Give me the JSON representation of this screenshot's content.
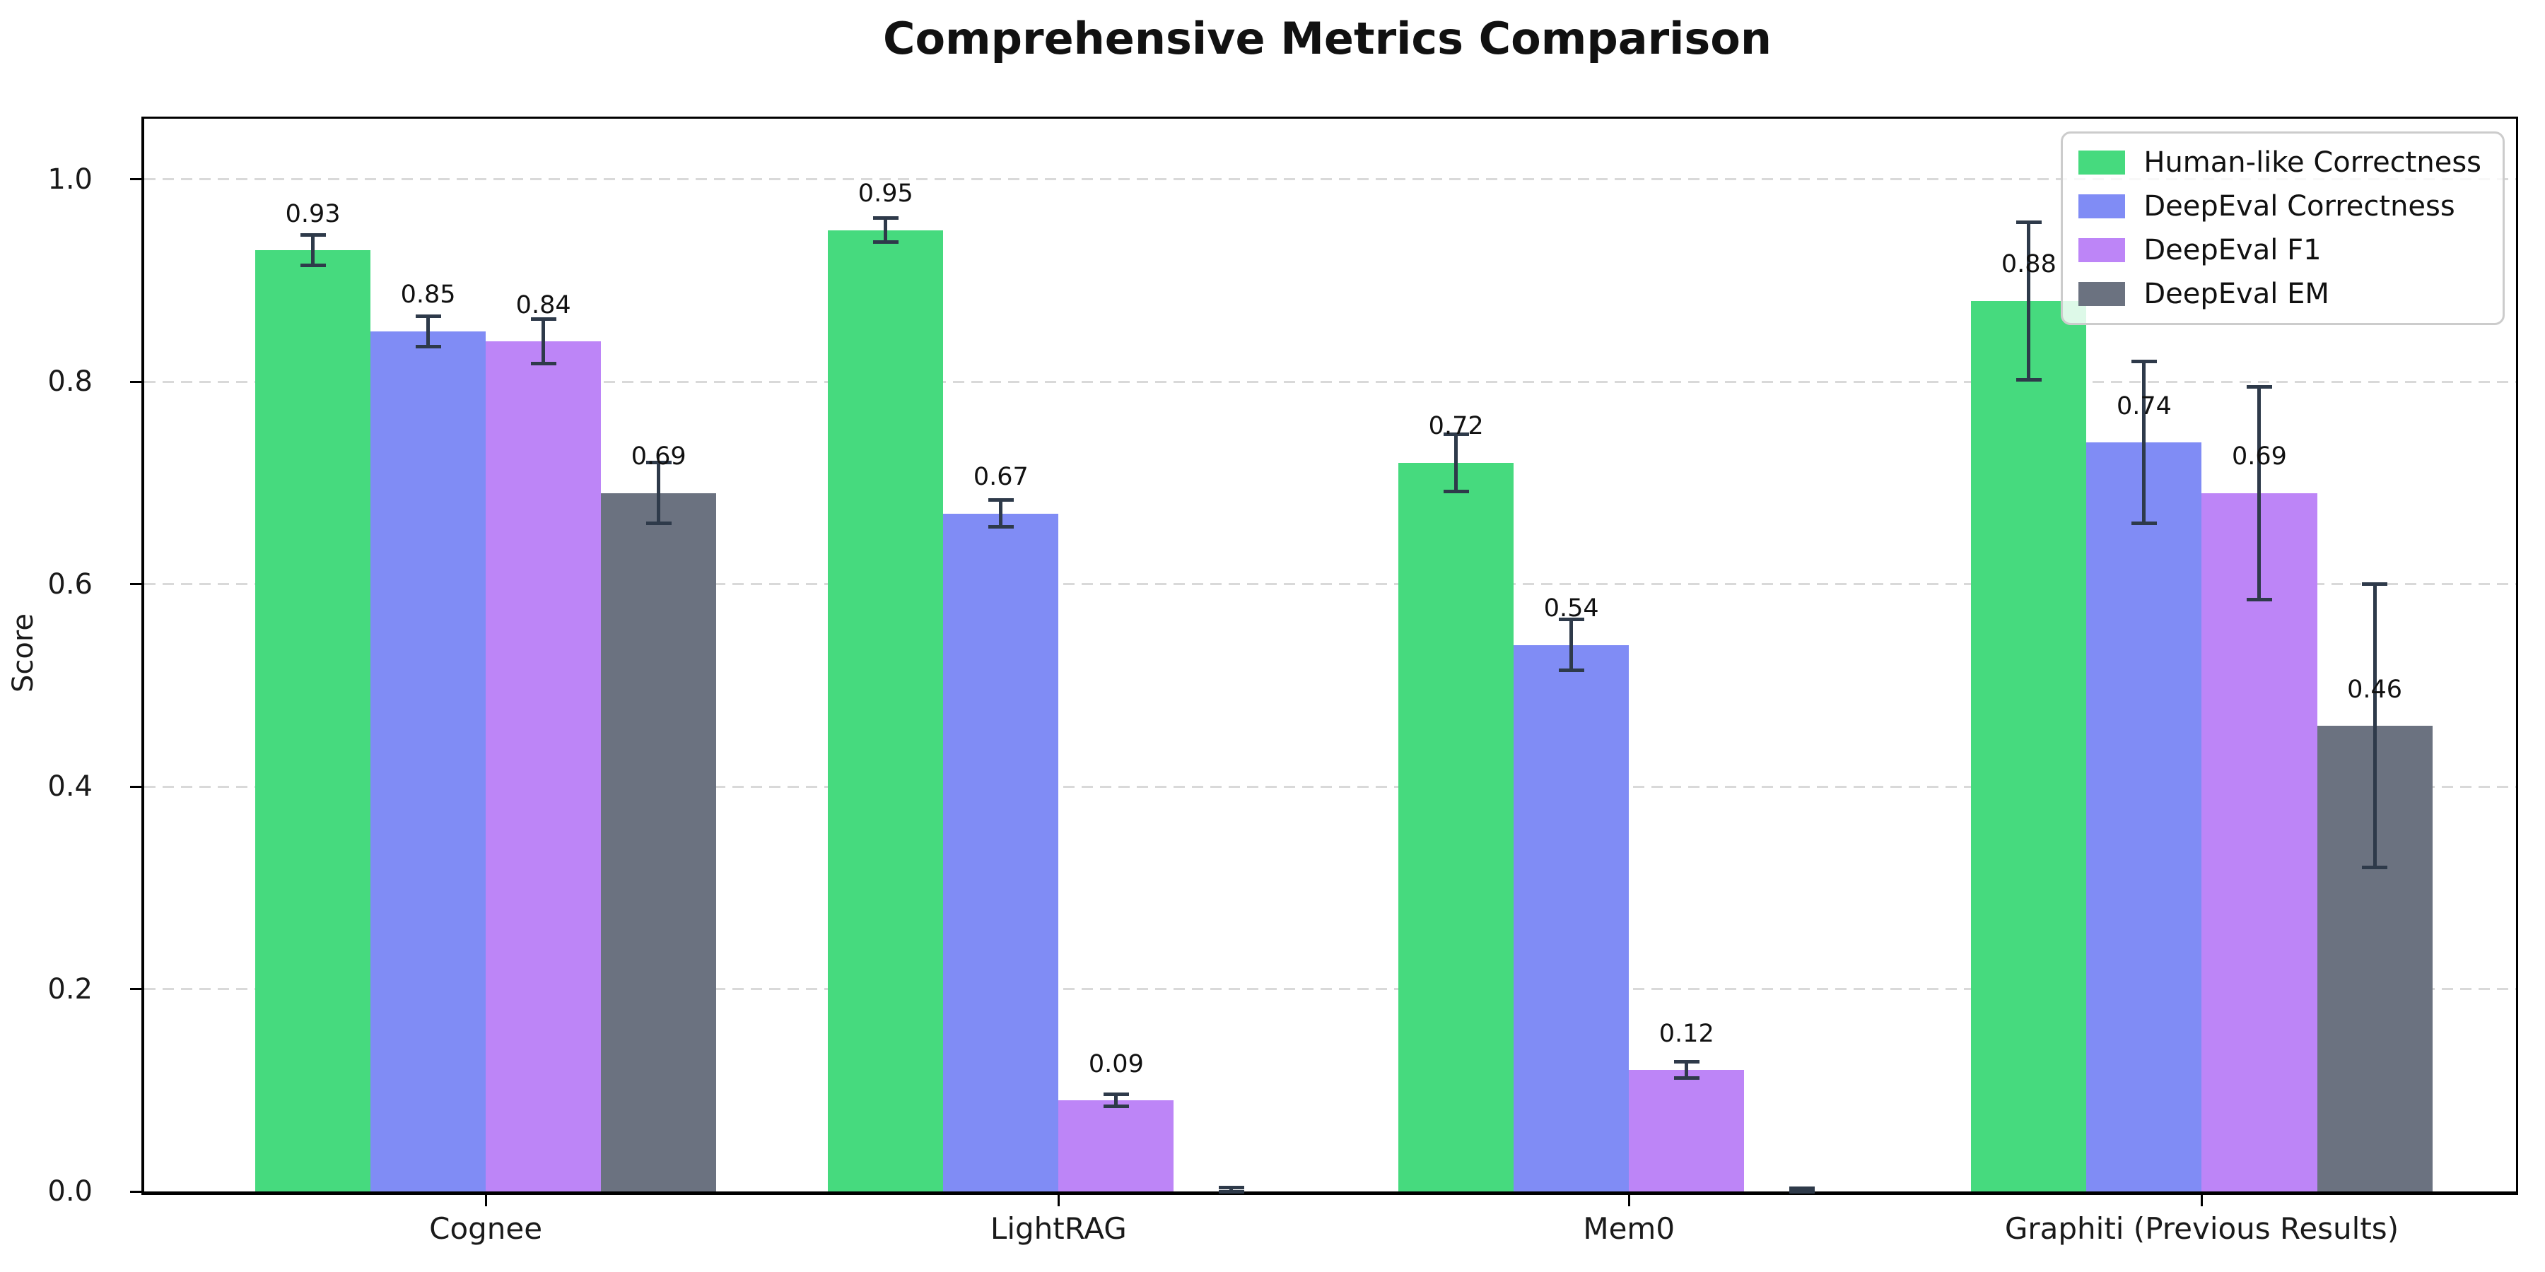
{
  "title": "Comprehensive Metrics Comparison",
  "axes": {
    "ylabel": "Score",
    "yticks": [
      "0.0",
      "0.2",
      "0.4",
      "0.6",
      "0.8",
      "1.0"
    ],
    "categories": [
      "Cognee",
      "LightRAG",
      "Mem0",
      "Graphiti (Previous Results)"
    ]
  },
  "chart_data": {
    "type": "bar",
    "title": "Comprehensive Metrics Comparison",
    "xlabel": "",
    "ylabel": "Score",
    "ylim": [
      0,
      1.06
    ],
    "grid": "horizontal dashed",
    "legend_position": "upper right",
    "error_bar_color": "#2e3a4a",
    "grid_color": "#d9d9d9",
    "categories": [
      "Cognee",
      "LightRAG",
      "Mem0",
      "Graphiti (Previous Results)"
    ],
    "yticks": [
      0.0,
      0.2,
      0.4,
      0.6,
      0.8,
      1.0
    ],
    "series": [
      {
        "name": "Human-like Correctness",
        "color": "#46da7e",
        "values": [
          0.93,
          0.95,
          0.72,
          0.88
        ],
        "errors": [
          0.015,
          0.012,
          0.028,
          0.078
        ],
        "labels": [
          "0.93",
          "0.95",
          "0.72",
          "0.88"
        ]
      },
      {
        "name": "DeepEval Correctness",
        "color": "#808cf5",
        "values": [
          0.85,
          0.67,
          0.54,
          0.74
        ],
        "errors": [
          0.015,
          0.013,
          0.025,
          0.08
        ],
        "labels": [
          "0.85",
          "0.67",
          "0.54",
          "0.74"
        ]
      },
      {
        "name": "DeepEval F1",
        "color": "#bd85f7",
        "values": [
          0.84,
          0.09,
          0.12,
          0.69
        ],
        "errors": [
          0.022,
          0.006,
          0.008,
          0.105
        ],
        "labels": [
          "0.84",
          "0.09",
          "0.12",
          "0.69"
        ]
      },
      {
        "name": "DeepEval EM",
        "color": "#6b7280",
        "values": [
          0.69,
          0.0,
          0.0,
          0.46
        ],
        "errors": [
          0.03,
          0.004,
          0.003,
          0.14
        ],
        "labels": [
          "0.69",
          "",
          "",
          "0.46"
        ]
      }
    ]
  }
}
